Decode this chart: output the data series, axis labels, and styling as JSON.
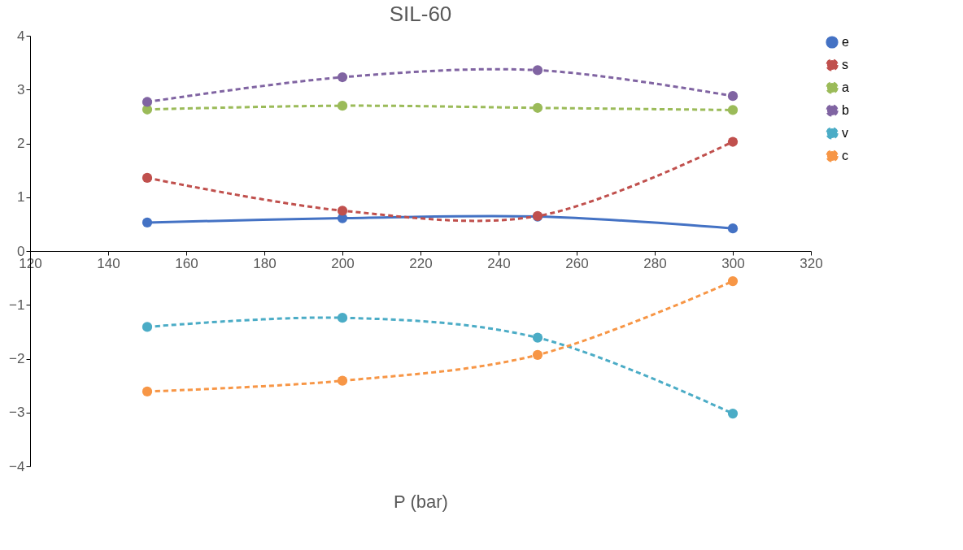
{
  "chart_data": {
    "type": "line",
    "title": "SIL-60",
    "xlabel": "P (bar)",
    "x": [
      150,
      200,
      250,
      300
    ],
    "series": [
      {
        "name": "e",
        "color": "#4472c4",
        "line_style": "solid",
        "values": [
          0.53,
          0.61,
          0.64,
          0.42
        ]
      },
      {
        "name": "s",
        "color": "#c0504d",
        "line_style": "dashed",
        "values": [
          1.36,
          0.75,
          0.65,
          2.03
        ]
      },
      {
        "name": "a",
        "color": "#9bbb59",
        "line_style": "dashed",
        "values": [
          2.63,
          2.7,
          2.66,
          2.62
        ]
      },
      {
        "name": "b",
        "color": "#8064a2",
        "line_style": "dashed",
        "values": [
          2.77,
          3.23,
          3.36,
          2.88
        ]
      },
      {
        "name": "v",
        "color": "#4bacc6",
        "line_style": "dashed",
        "values": [
          -1.41,
          -1.24,
          -1.61,
          -3.02
        ]
      },
      {
        "name": "c",
        "color": "#f79646",
        "line_style": "dashed",
        "values": [
          -2.61,
          -2.41,
          -1.93,
          -0.56
        ]
      }
    ],
    "xlim": [
      120,
      320
    ],
    "xticks": [
      120,
      140,
      160,
      180,
      200,
      220,
      240,
      260,
      280,
      300,
      320
    ],
    "ylim": [
      -4,
      4
    ],
    "yticks": [
      -4,
      -3,
      -2,
      -1,
      0,
      1,
      2,
      3,
      4
    ],
    "grid": false,
    "legend": "right",
    "marker": "circle"
  }
}
